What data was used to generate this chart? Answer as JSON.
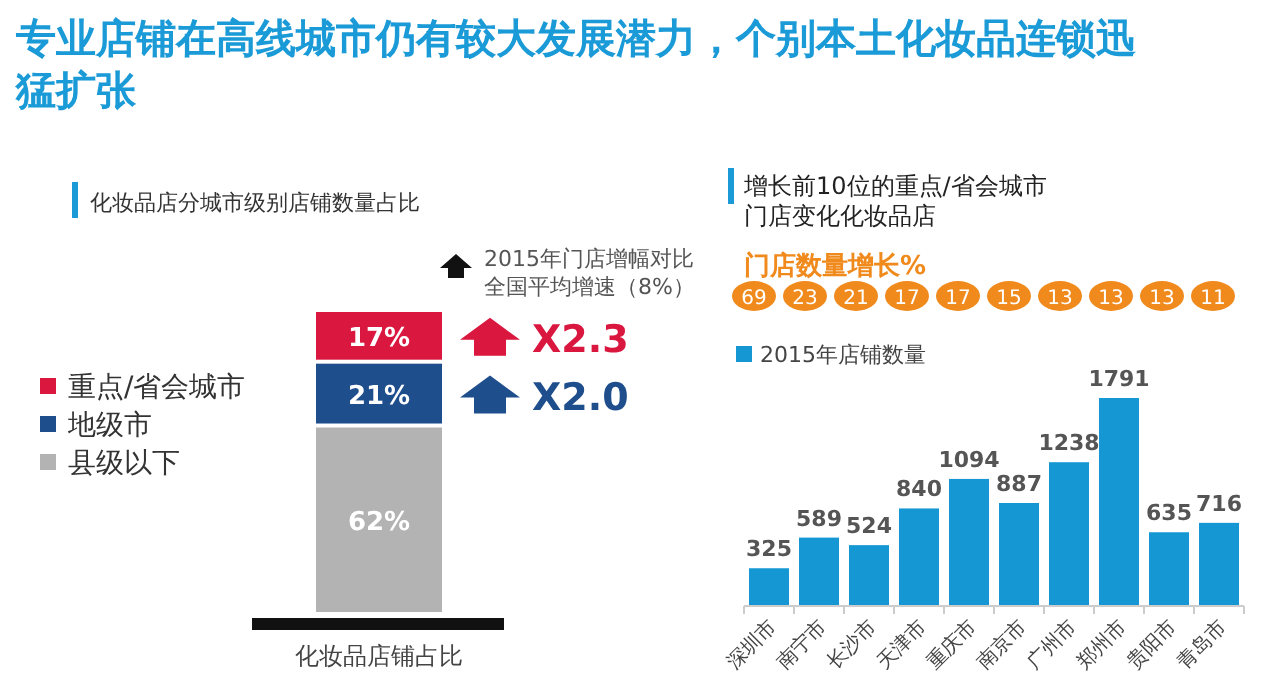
{
  "chart_data": [
    {
      "type": "bar",
      "stacked": true,
      "title": "专业店铺在高线城市仍有较大发展潜力，个别本土化妆品连锁迅猛扩张",
      "subtitle": "化妆品店分城市级别店铺数量占比",
      "categories": [
        "化妆品店铺占比"
      ],
      "legend": "left",
      "series": [
        {
          "name": "县级以下",
          "color": "#b3b3b3",
          "values": [
            62
          ],
          "value_labels": [
            "62%"
          ]
        },
        {
          "name": "地级市",
          "color": "#1f4e8c",
          "values": [
            21
          ],
          "value_labels": [
            "21%"
          ]
        },
        {
          "name": "重点/省会城市",
          "color": "#d9173f",
          "values": [
            17
          ],
          "value_labels": [
            "17%"
          ]
        }
      ],
      "annotations": [
        "2015年门店增幅对比全国平均增速（8%）",
        "X2.3",
        "X2.0"
      ]
    },
    {
      "type": "bar",
      "title": "增长前10位的重点/省会城市门店变化化妆品店",
      "categories": [
        "深圳市",
        "南宁市",
        "长沙市",
        "天津市",
        "重庆市",
        "南京市",
        "广州市",
        "郑州市",
        "贵阳市",
        "青岛市"
      ],
      "legend": "top left",
      "data_labels": true,
      "series": [
        {
          "name": "2015年店铺数量",
          "color": "#1597d3",
          "values": [
            325,
            589,
            524,
            840,
            1094,
            887,
            1238,
            1791,
            635,
            716
          ]
        }
      ],
      "annotations": [
        "门店数量增长%",
        "69",
        "23",
        "21",
        "17",
        "17",
        "15",
        "13",
        "13",
        "13",
        "11"
      ]
    }
  ]
}
